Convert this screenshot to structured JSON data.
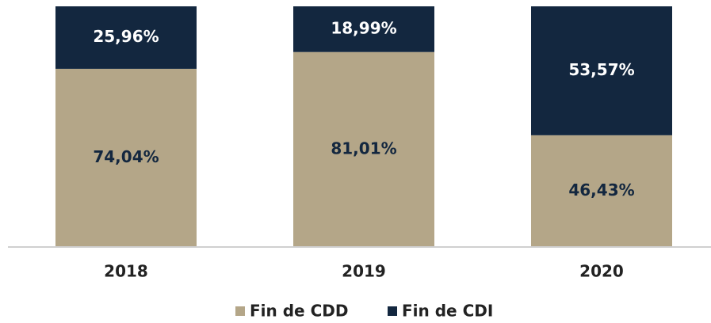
{
  "chart_data": {
    "type": "stacked_bar",
    "categories": [
      "2018",
      "2019",
      "2020"
    ],
    "series": [
      {
        "name": "Fin de CDD",
        "color": "#b4a688",
        "values": [
          74.04,
          81.01,
          46.43
        ],
        "value_labels": [
          "74,04%",
          "81,01%",
          "46,43%"
        ]
      },
      {
        "name": "Fin de CDI",
        "color": "#13273f",
        "values": [
          25.96,
          18.99,
          53.57
        ],
        "value_labels": [
          "25,96%",
          "18,99%",
          "53,57%"
        ]
      }
    ],
    "ylim": [
      0,
      100
    ]
  }
}
